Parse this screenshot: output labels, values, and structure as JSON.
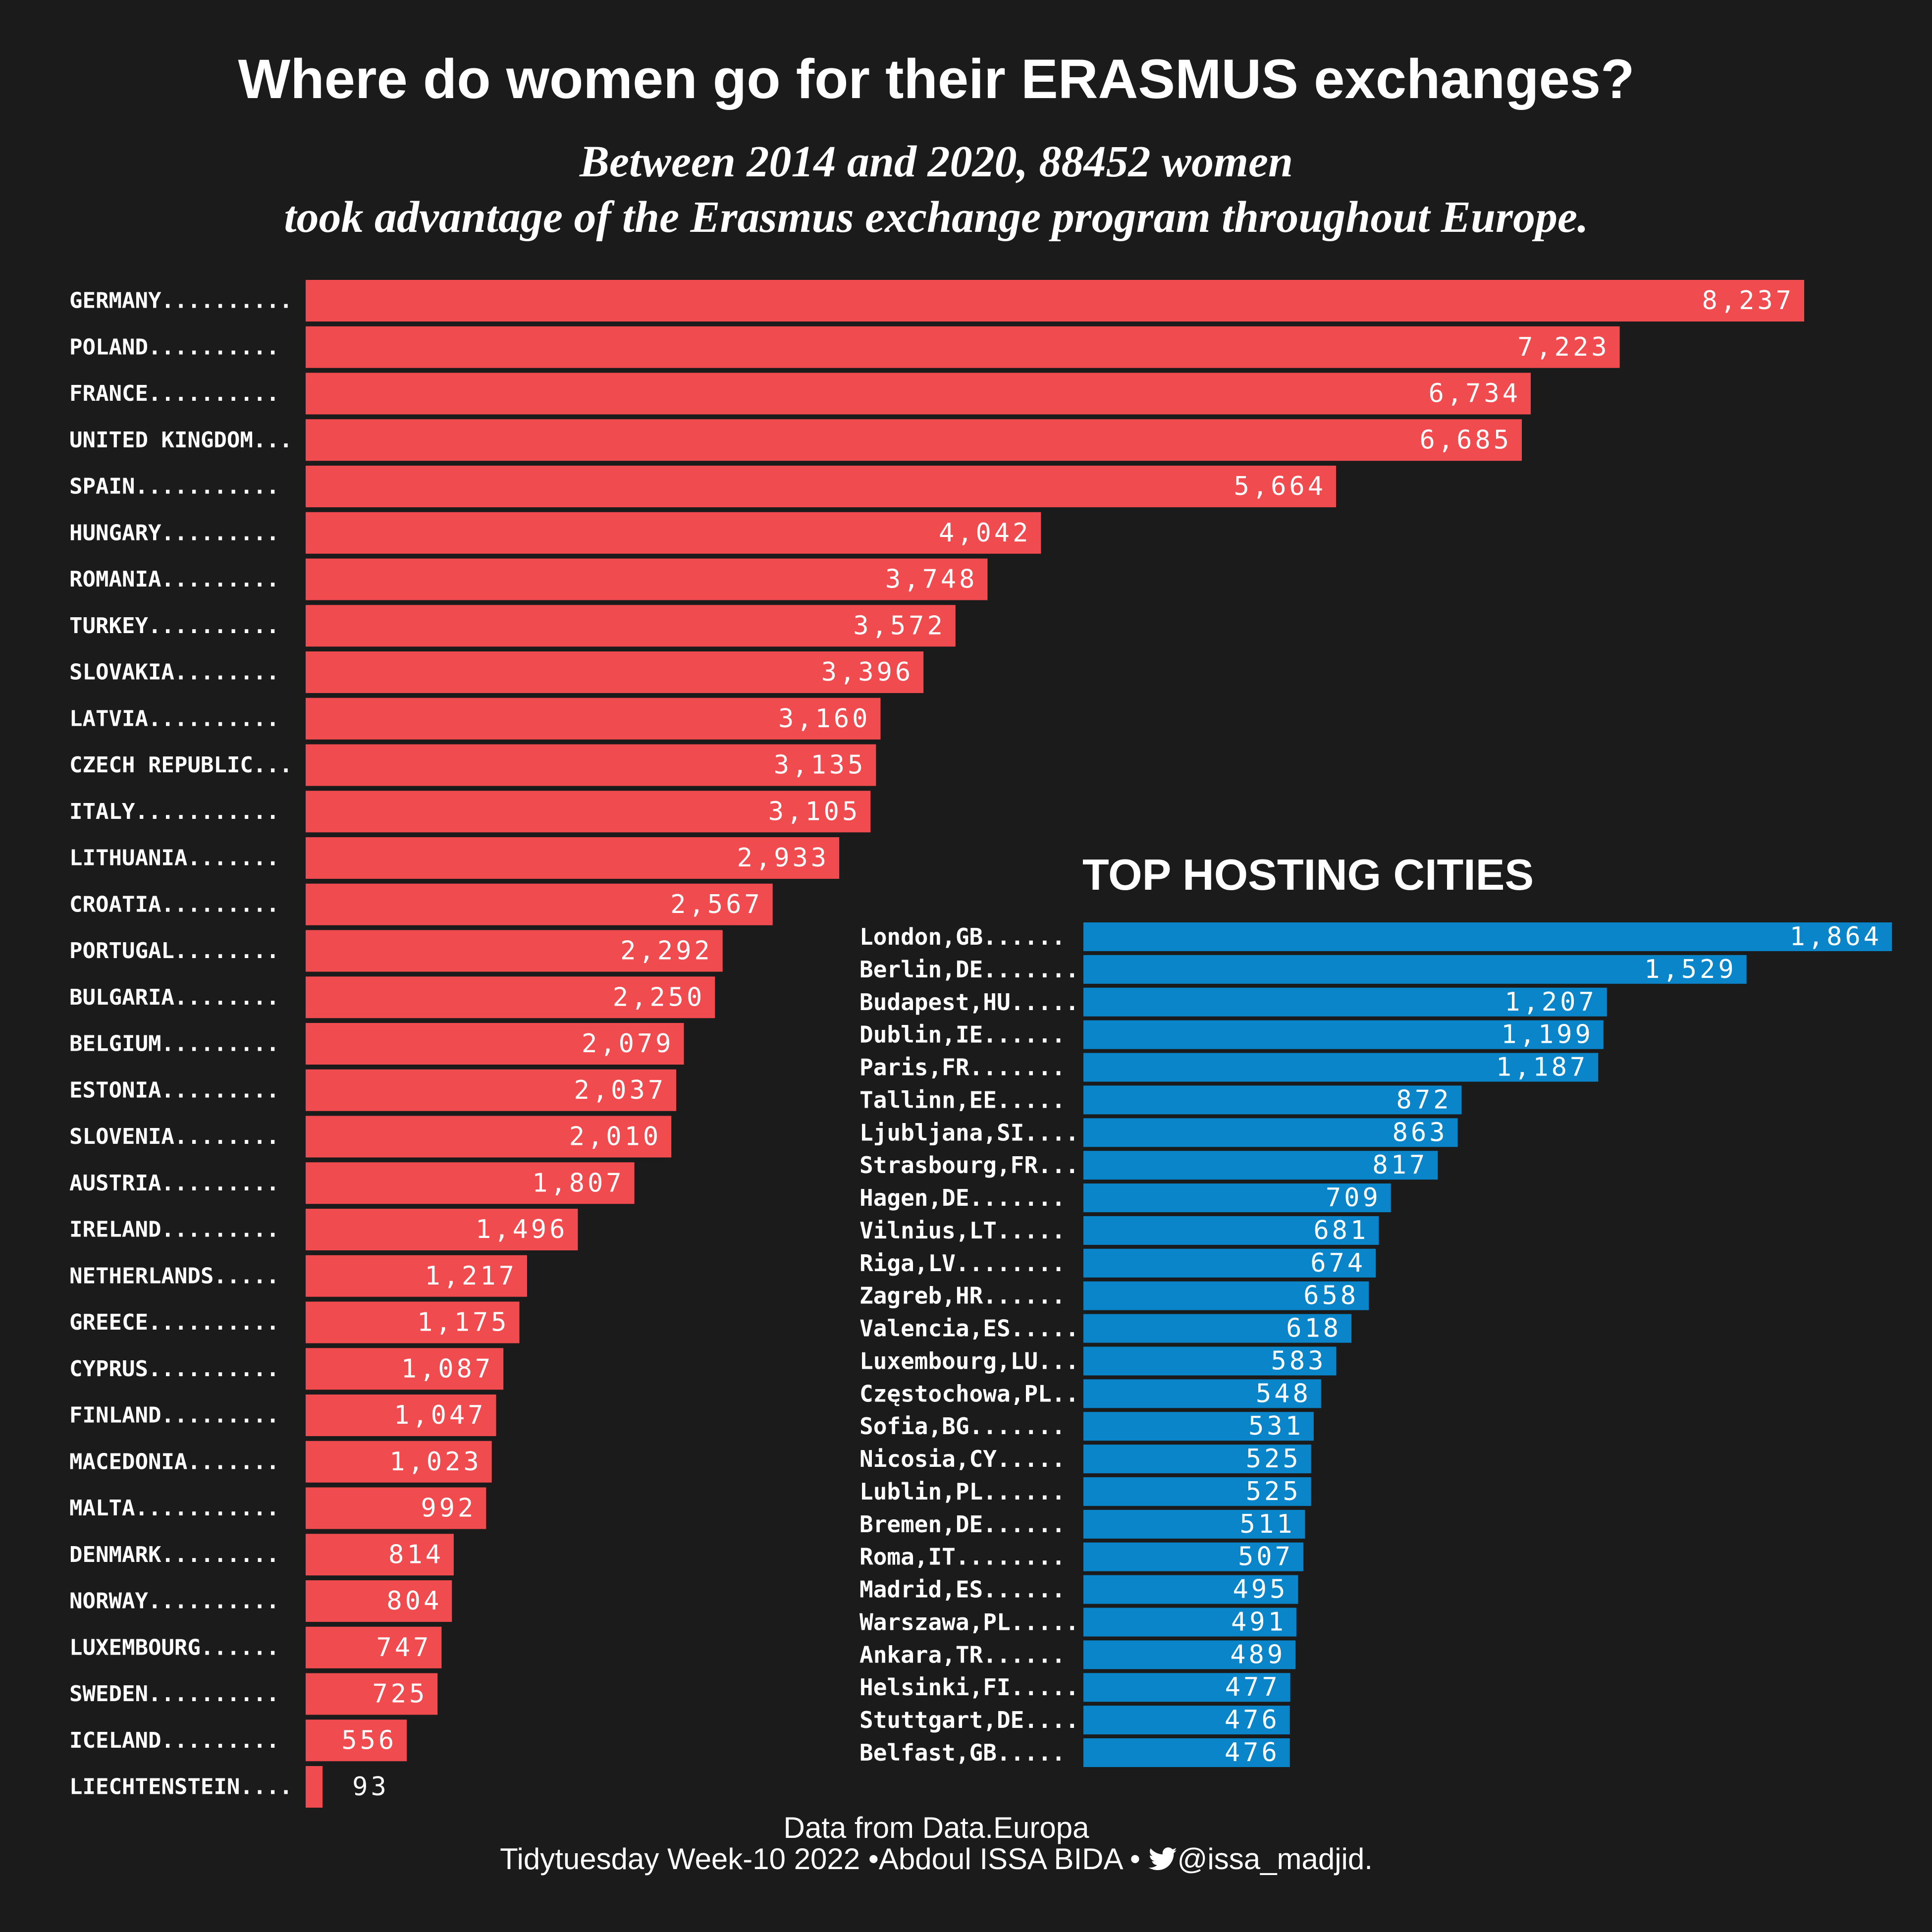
{
  "title": "Where do women go for their ERASMUS exchanges?",
  "subtitle_line1": "Between 2014 and 2020, 88452 women",
  "subtitle_line2": "took advantage of the Erasmus exchange program throughout Europe.",
  "caption_line1": "Data from Data.Europa",
  "caption_line2_prefix": "Tidytuesday Week-10 2022 •Abdoul ISSA BIDA • ",
  "caption_line2_handle": "@issa_madjid.",
  "chart_data": [
    {
      "type": "bar",
      "orientation": "horizontal",
      "color": "#f04b4e",
      "categories": [
        "GERMANY",
        "POLAND",
        "FRANCE",
        "UNITED KINGDOM",
        "SPAIN",
        "HUNGARY",
        "ROMANIA",
        "TURKEY",
        "SLOVAKIA",
        "LATVIA",
        "CZECH REPUBLIC",
        "ITALY",
        "LITHUANIA",
        "CROATIA",
        "PORTUGAL",
        "BULGARIA",
        "BELGIUM",
        "ESTONIA",
        "SLOVENIA",
        "AUSTRIA",
        "IRELAND",
        "NETHERLANDS",
        "GREECE",
        "CYPRUS",
        "FINLAND",
        "MACEDONIA",
        "MALTA",
        "DENMARK",
        "NORWAY",
        "LUXEMBOURG",
        "SWEDEN",
        "ICELAND",
        "LIECHTENSTEIN"
      ],
      "values": [
        8237,
        7223,
        6734,
        6685,
        5664,
        4042,
        3748,
        3572,
        3396,
        3160,
        3135,
        3105,
        2933,
        2567,
        2292,
        2250,
        2079,
        2037,
        2010,
        1807,
        1496,
        1217,
        1175,
        1087,
        1047,
        1023,
        992,
        814,
        804,
        747,
        725,
        556,
        93
      ],
      "value_labels": [
        "8,237",
        "7,223",
        "6,734",
        "6,685",
        "5,664",
        "4,042",
        "3,748",
        "3,572",
        "3,396",
        "3,160",
        "3,135",
        "3,105",
        "2,933",
        "2,567",
        "2,292",
        "2,250",
        "2,079",
        "2,037",
        "2,010",
        "1,807",
        "1,496",
        "1,217",
        "1,175",
        "1,087",
        "1,047",
        "1,023",
        "992",
        "814",
        "804",
        "747",
        "725",
        "556",
        "93"
      ],
      "label_dots": [
        10,
        10,
        10,
        3,
        11,
        9,
        9,
        10,
        8,
        10,
        3,
        11,
        7,
        9,
        8,
        8,
        9,
        9,
        8,
        9,
        9,
        5,
        10,
        10,
        9,
        7,
        11,
        9,
        10,
        6,
        10,
        9,
        4
      ]
    },
    {
      "type": "bar",
      "orientation": "horizontal",
      "title": "TOP HOSTING CITIES",
      "color": "#0a85c9",
      "categories": [
        "London,GB",
        "Berlin,DE",
        "Budapest,HU",
        "Dublin,IE",
        "Paris,FR",
        "Tallinn,EE",
        "Ljubljana,SI",
        "Strasbourg,FR",
        "Hagen,DE",
        "Vilnius,LT",
        "Riga,LV",
        "Zagreb,HR",
        "Valencia,ES",
        "Luxembourg,LU",
        "Częstochowa,PL",
        "Sofia,BG",
        "Nicosia,CY",
        "Lublin,PL",
        "Bremen,DE",
        "Roma,IT",
        "Madrid,ES",
        "Warszawa,PL",
        "Ankara,TR",
        "Helsinki,FI",
        "Stuttgart,DE",
        "Belfast,GB"
      ],
      "values": [
        1864,
        1529,
        1207,
        1199,
        1187,
        872,
        863,
        817,
        709,
        681,
        674,
        658,
        618,
        583,
        548,
        531,
        525,
        525,
        511,
        507,
        495,
        491,
        489,
        477,
        476,
        476
      ],
      "value_labels": [
        "1,864",
        "1,529",
        "1,207",
        "1,199",
        "1,187",
        "872",
        "863",
        "817",
        "709",
        "681",
        "674",
        "658",
        "618",
        "583",
        "548",
        "531",
        "525",
        "525",
        "511",
        "507",
        "495",
        "491",
        "489",
        "477",
        "476",
        "476"
      ],
      "label_dots": [
        6,
        7,
        5,
        6,
        7,
        5,
        4,
        3,
        7,
        5,
        8,
        6,
        5,
        3,
        2,
        7,
        5,
        6,
        6,
        8,
        6,
        5,
        6,
        5,
        4,
        5
      ]
    }
  ]
}
